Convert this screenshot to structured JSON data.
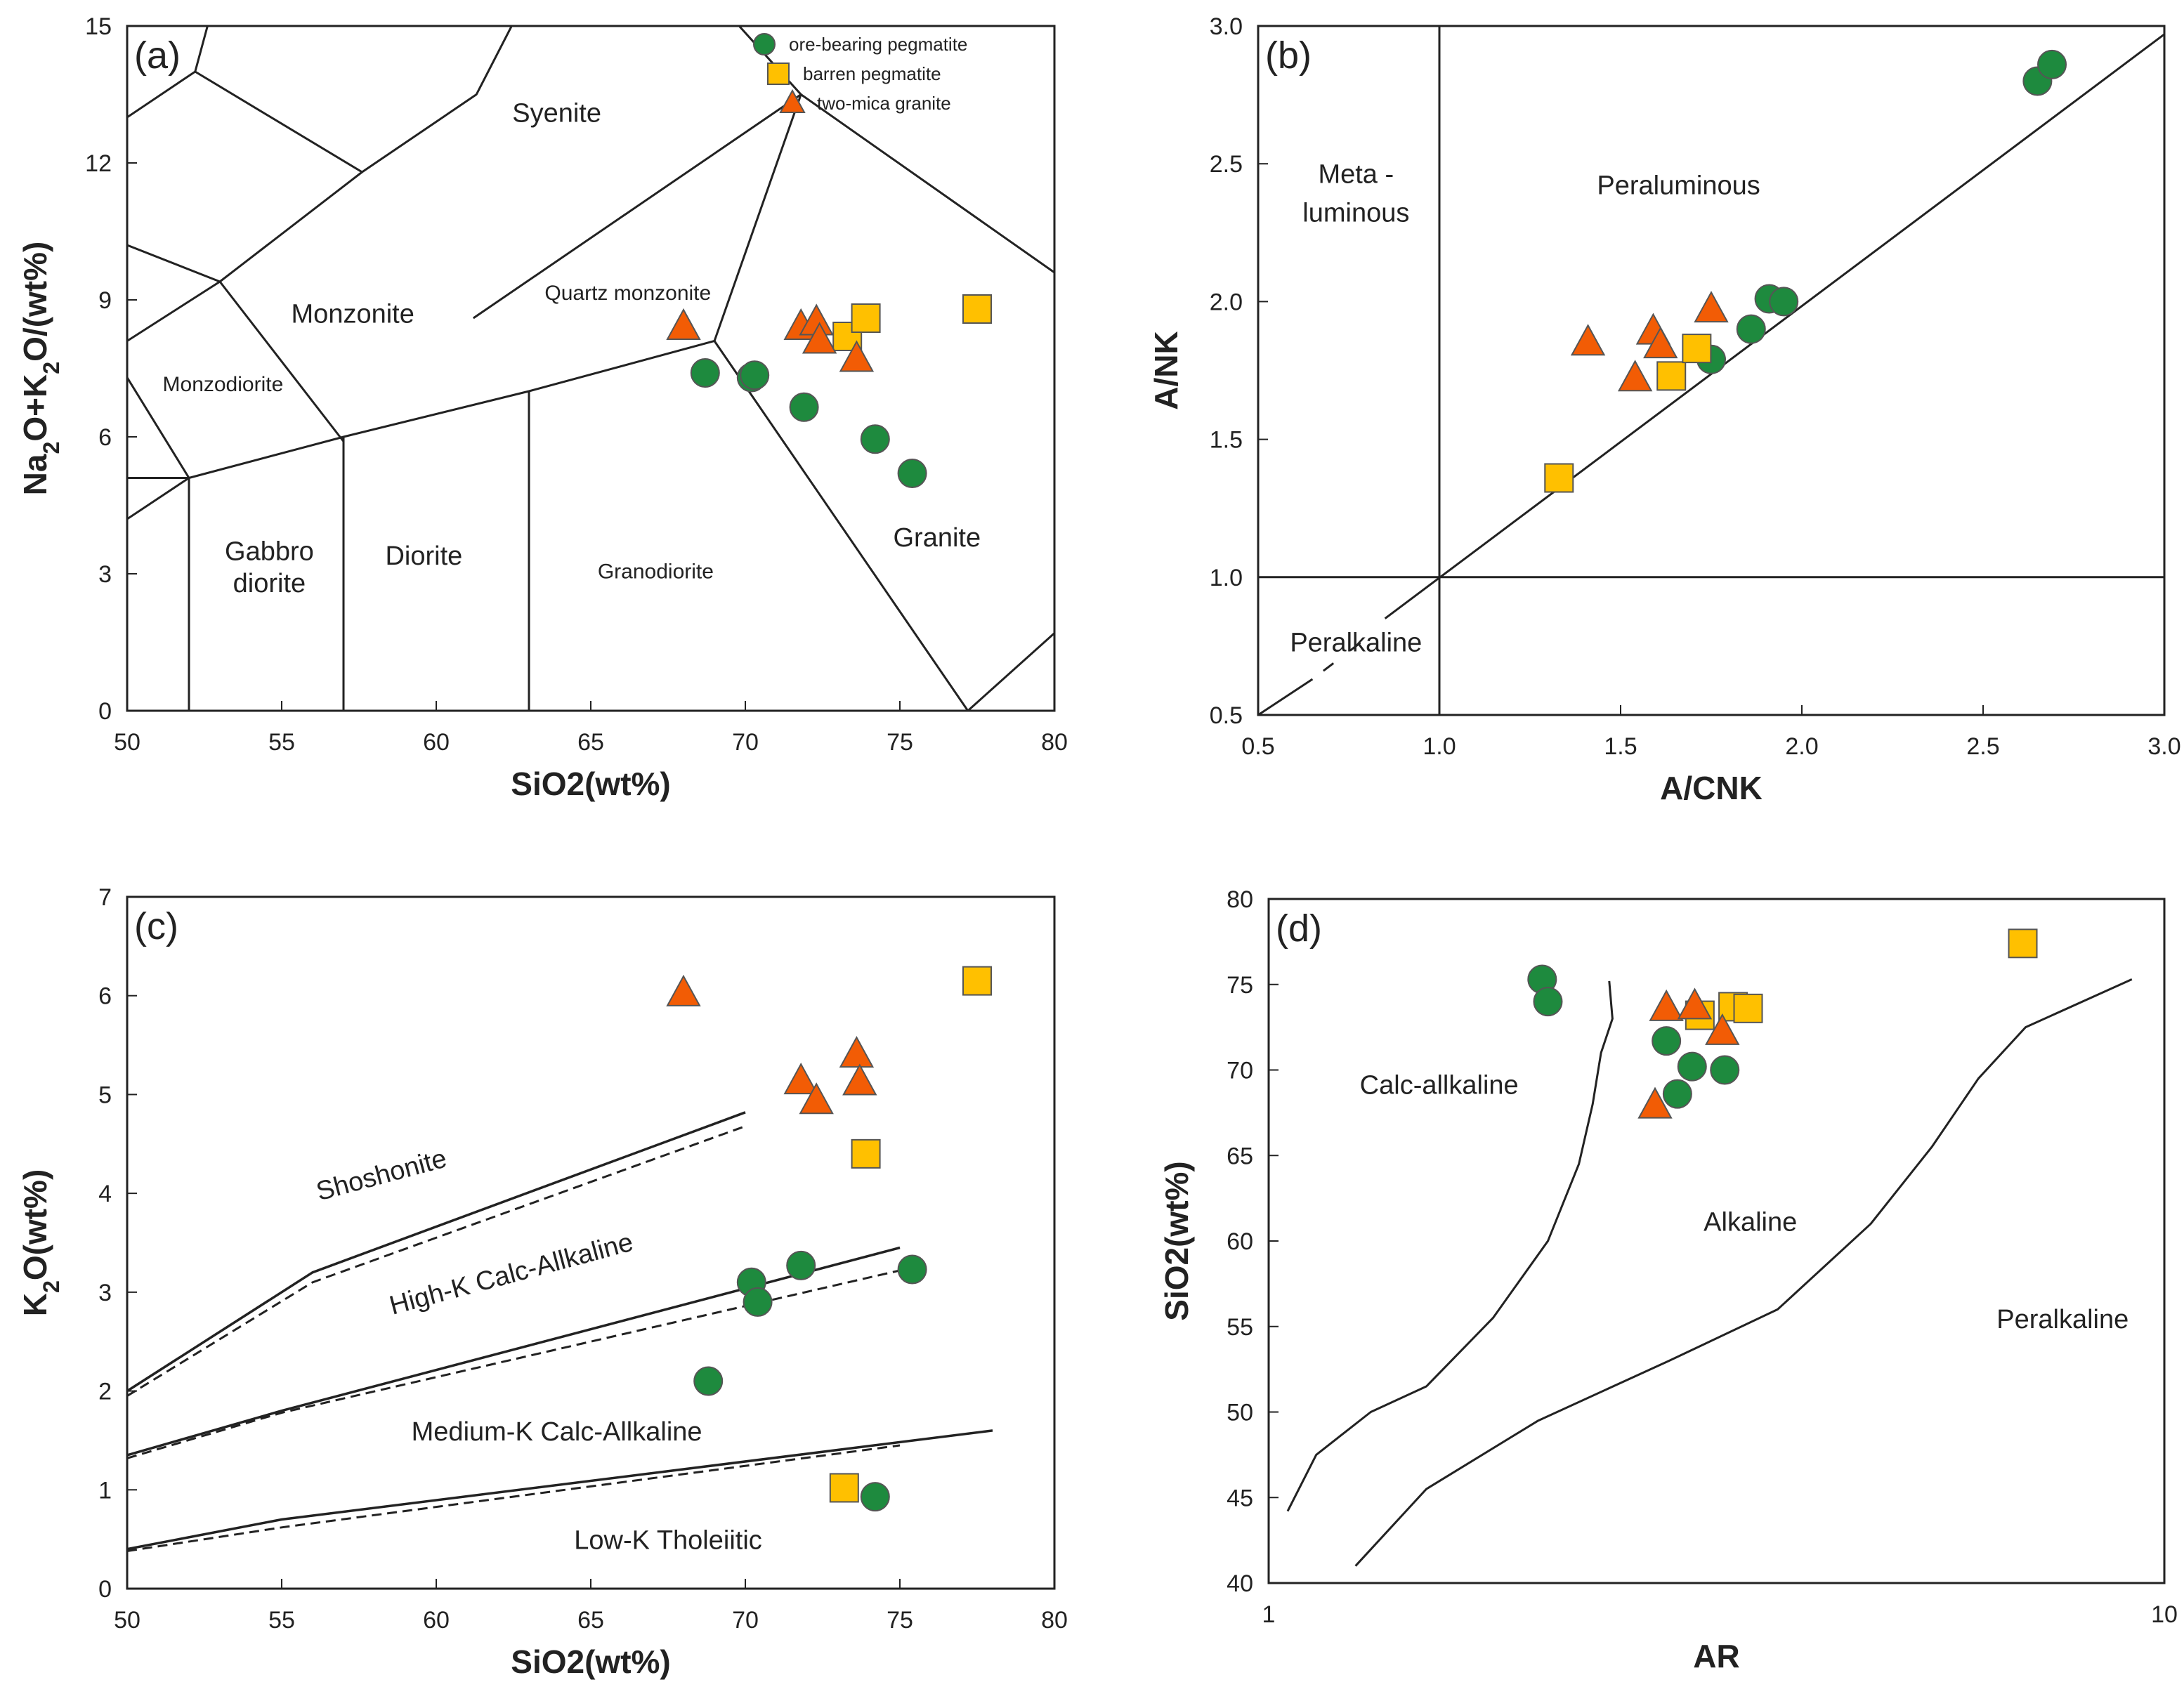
{
  "colors": {
    "ore": "#1e8a3e",
    "barren": "#ffc000",
    "mica": "#f25c05",
    "stroke": "#555555"
  },
  "legend": [
    {
      "label": "ore-bearing pegmatite",
      "series": "ore"
    },
    {
      "label": "barren pegmatite",
      "series": "barren"
    },
    {
      "label": "two-mica granite",
      "series": "mica"
    }
  ],
  "chart_data": [
    {
      "id": "a",
      "type": "scatter",
      "panel_label": "(a)",
      "xlim": [
        50,
        80
      ],
      "ylim": [
        0,
        15
      ],
      "xticks": [
        50,
        55,
        60,
        65,
        70,
        75,
        80
      ],
      "yticks": [
        0,
        3,
        6,
        9,
        12,
        15
      ],
      "ylabel": "Na2O+K2O/(wt%)",
      "xlabel": "SiO2(wt%)",
      "field_lines": [
        [
          [
            50,
            4.2
          ],
          [
            52,
            5.1
          ],
          [
            57,
            6
          ],
          [
            63,
            7
          ],
          [
            69,
            8.1
          ]
        ],
        [
          [
            52,
            5.1
          ],
          [
            52,
            0
          ]
        ],
        [
          [
            57,
            6
          ],
          [
            57,
            0
          ]
        ],
        [
          [
            63,
            7
          ],
          [
            63,
            0
          ]
        ],
        [
          [
            69,
            8.1
          ],
          [
            77.2,
            0
          ]
        ],
        [
          [
            69,
            8.1
          ],
          [
            71.8,
            13.5
          ]
        ],
        [
          [
            50,
            7.3
          ],
          [
            52,
            5.1
          ]
        ],
        [
          [
            50,
            8.1
          ],
          [
            53,
            9.4
          ],
          [
            57,
            5.9
          ]
        ],
        [
          [
            50,
            10.2
          ],
          [
            53,
            9.4
          ],
          [
            57.6,
            11.8
          ],
          [
            61.3,
            13.5
          ],
          [
            63.2,
            16
          ]
        ],
        [
          [
            50,
            13
          ],
          [
            52.2,
            14
          ],
          [
            57.6,
            11.8
          ],
          [
            52.2,
            14
          ],
          [
            52.6,
            15
          ]
        ],
        [
          [
            61.2,
            8.6
          ],
          [
            71.8,
            13.5
          ],
          [
            69.8,
            15
          ]
        ],
        [
          [
            71.8,
            13.5
          ],
          [
            80,
            9.6
          ]
        ],
        [
          [
            50,
            5.1
          ],
          [
            52,
            5.1
          ]
        ],
        [
          [
            77.2,
            0
          ],
          [
            80,
            1.7
          ]
        ]
      ],
      "regions": [
        {
          "text": "Syenite",
          "x": 63.9,
          "y": 12.9
        },
        {
          "text": "Monzonite",
          "x": 57.3,
          "y": 8.5
        },
        {
          "text": "Quartz monzonite",
          "x": 66.2,
          "y": 9.0,
          "small": true
        },
        {
          "text": "Monzodiorite",
          "x": 53.1,
          "y": 7.0,
          "small": true
        },
        {
          "text": "Gabbro",
          "x": 54.6,
          "y": 3.3
        },
        {
          "text": "diorite",
          "x": 54.6,
          "y": 2.6
        },
        {
          "text": "Diorite",
          "x": 59.6,
          "y": 3.2
        },
        {
          "text": "Granodiorite",
          "x": 67.1,
          "y": 2.9,
          "small": true
        },
        {
          "text": "Granite",
          "x": 76.2,
          "y": 3.6
        }
      ],
      "series": [
        {
          "name": "ore-bearing pegmatite",
          "key": "ore",
          "points": [
            [
              68.7,
              7.4
            ],
            [
              70.2,
              7.3
            ],
            [
              70.3,
              7.35
            ],
            [
              71.9,
              6.65
            ],
            [
              74.2,
              5.95
            ],
            [
              75.4,
              5.2
            ]
          ]
        },
        {
          "name": "barren pegmatite",
          "key": "barren",
          "points": [
            [
              73.3,
              8.2
            ],
            [
              73.9,
              8.6
            ],
            [
              77.5,
              8.8
            ]
          ]
        },
        {
          "name": "two-mica granite",
          "key": "mica",
          "points": [
            [
              68.0,
              8.4
            ],
            [
              71.8,
              8.4
            ],
            [
              72.3,
              8.5
            ],
            [
              72.4,
              8.1
            ],
            [
              73.6,
              7.7
            ]
          ]
        }
      ]
    },
    {
      "id": "b",
      "type": "scatter",
      "panel_label": "(b)",
      "xlim": [
        0.5,
        3.0
      ],
      "ylim": [
        0.5,
        3.0
      ],
      "xticks": [
        "0.5",
        "1.0",
        "1.5",
        "2.0",
        "2.5",
        "3.0"
      ],
      "yticks": [
        "0.5",
        "1.0",
        "1.5",
        "2.0",
        "2.5",
        "3.0"
      ],
      "ylabel": "A/NK",
      "xlabel": "A/CNK",
      "field_lines": [
        [
          [
            1.0,
            0.5
          ],
          [
            1.0,
            3.0
          ]
        ],
        [
          [
            0.5,
            1.0
          ],
          [
            3.0,
            1.0
          ]
        ],
        [
          [
            0.5,
            0.5
          ],
          [
            0.65,
            0.63
          ]
        ],
        [
          [
            0.85,
            0.85
          ],
          [
            3.0,
            2.97
          ]
        ]
      ],
      "regions": [
        {
          "text": "Meta -",
          "x": 0.77,
          "y": 2.43
        },
        {
          "text": "luminous",
          "x": 0.77,
          "y": 2.29
        },
        {
          "text": "Peraluminous",
          "x": 1.66,
          "y": 2.39
        },
        {
          "text": "Peralkaline",
          "x": 0.77,
          "y": 0.73
        }
      ],
      "series": [
        {
          "name": "ore-bearing pegmatite",
          "key": "ore",
          "points": [
            [
              2.65,
              2.8
            ],
            [
              2.69,
              2.86
            ],
            [
              1.91,
              2.01
            ],
            [
              1.95,
              2.0
            ],
            [
              1.86,
              1.9
            ],
            [
              1.75,
              1.79
            ]
          ]
        },
        {
          "name": "barren pegmatite",
          "key": "barren",
          "points": [
            [
              1.33,
              1.36
            ],
            [
              1.64,
              1.73
            ],
            [
              1.71,
              1.83
            ]
          ]
        },
        {
          "name": "two-mica granite",
          "key": "mica",
          "points": [
            [
              1.41,
              1.85
            ],
            [
              1.54,
              1.72
            ],
            [
              1.59,
              1.89
            ],
            [
              1.61,
              1.84
            ],
            [
              1.75,
              1.97
            ]
          ]
        }
      ]
    },
    {
      "id": "c",
      "type": "scatter",
      "panel_label": "(c)",
      "xlim": [
        50,
        80
      ],
      "ylim": [
        0,
        7
      ],
      "xticks": [
        50,
        55,
        60,
        65,
        70,
        75,
        80
      ],
      "yticks": [
        0,
        1,
        2,
        3,
        4,
        5,
        6,
        7
      ],
      "ylabel": "K2O(wt%)",
      "xlabel": "SiO2(wt%)",
      "solid_lines": [
        [
          [
            50,
            2.0
          ],
          [
            56,
            3.2
          ],
          [
            70,
            4.82
          ]
        ],
        [
          [
            50,
            1.35
          ],
          [
            55,
            1.8
          ],
          [
            75,
            3.45
          ]
        ],
        [
          [
            50,
            0.4
          ],
          [
            55,
            0.7
          ],
          [
            78,
            1.6
          ]
        ]
      ],
      "dashed_lines": [
        [
          [
            50,
            1.95
          ],
          [
            56,
            3.1
          ],
          [
            70,
            4.68
          ]
        ],
        [
          [
            50,
            1.32
          ],
          [
            55,
            1.78
          ],
          [
            75,
            3.22
          ]
        ],
        [
          [
            50,
            0.38
          ],
          [
            55,
            0.62
          ],
          [
            75,
            1.45
          ]
        ]
      ],
      "regions": [
        {
          "text": "Shoshonite",
          "x": 58.3,
          "y": 4.1,
          "angle": -15
        },
        {
          "text": "High-K Calc-Allkaline",
          "x": 62.5,
          "y": 3.1,
          "angle": -15
        },
        {
          "text": "Medium-K Calc-Allkaline",
          "x": 63.9,
          "y": 1.5
        },
        {
          "text": "Low-K Tholeiitic",
          "x": 67.5,
          "y": 0.4
        }
      ],
      "series": [
        {
          "name": "ore-bearing pegmatite",
          "key": "ore",
          "points": [
            [
              68.8,
              2.1
            ],
            [
              70.2,
              3.1
            ],
            [
              70.4,
              2.9
            ],
            [
              71.8,
              3.27
            ],
            [
              75.4,
              3.23
            ],
            [
              74.2,
              0.93
            ]
          ]
        },
        {
          "name": "barren pegmatite",
          "key": "barren",
          "points": [
            [
              77.5,
              6.15
            ],
            [
              73.9,
              4.4
            ],
            [
              73.2,
              1.02
            ]
          ]
        },
        {
          "name": "two-mica granite",
          "key": "mica",
          "points": [
            [
              68.0,
              6.02
            ],
            [
              73.6,
              5.4
            ],
            [
              71.8,
              5.13
            ],
            [
              73.7,
              5.12
            ],
            [
              72.3,
              4.93
            ]
          ]
        }
      ]
    },
    {
      "id": "d",
      "type": "scatter",
      "panel_label": "(d)",
      "xscale": "log",
      "xlim": [
        1,
        10
      ],
      "ylim": [
        40,
        80
      ],
      "xticks": [
        1,
        10
      ],
      "yticks": [
        40,
        45,
        50,
        55,
        60,
        65,
        70,
        75,
        80
      ],
      "ylabel": "SiO2(wt%)",
      "xlabel": "AR",
      "field_lines": [
        [
          [
            1.05,
            44.2
          ],
          [
            1.13,
            47.5
          ],
          [
            1.3,
            50
          ],
          [
            1.5,
            51.5
          ],
          [
            1.78,
            55.5
          ],
          [
            2.05,
            60
          ],
          [
            2.22,
            64.5
          ],
          [
            2.3,
            68
          ],
          [
            2.35,
            71
          ],
          [
            2.42,
            73
          ],
          [
            2.4,
            75.2
          ]
        ],
        [
          [
            1.25,
            41
          ],
          [
            1.5,
            45.5
          ],
          [
            2.0,
            49.5
          ],
          [
            2.8,
            53
          ],
          [
            3.7,
            56
          ],
          [
            4.7,
            61
          ],
          [
            5.5,
            65.5
          ],
          [
            6.2,
            69.5
          ],
          [
            7.0,
            72.5
          ],
          [
            9.2,
            75.3
          ]
        ]
      ],
      "regions": [
        {
          "text": "Calc-allkaline",
          "x": 1.55,
          "y": 68.6
        },
        {
          "text": "Alkaline",
          "x": 3.45,
          "y": 60.6
        },
        {
          "text": "Peralkaline",
          "x": 7.7,
          "y": 54.9
        }
      ],
      "series": [
        {
          "name": "ore-bearing pegmatite",
          "key": "ore",
          "points": [
            [
              2.02,
              75.3
            ],
            [
              2.05,
              74.0
            ],
            [
              2.78,
              71.7
            ],
            [
              2.97,
              70.2
            ],
            [
              3.23,
              70.0
            ],
            [
              2.86,
              68.6
            ]
          ]
        },
        {
          "name": "barren pegmatite",
          "key": "barren",
          "points": [
            [
              3.03,
              73.2
            ],
            [
              3.3,
              73.7
            ],
            [
              3.43,
              73.6
            ],
            [
              6.95,
              77.4
            ]
          ]
        },
        {
          "name": "two-mica granite",
          "key": "mica",
          "points": [
            [
              2.78,
              73.6
            ],
            [
              2.99,
              73.7
            ],
            [
              3.21,
              72.2
            ],
            [
              2.7,
              67.9
            ]
          ]
        }
      ]
    }
  ]
}
